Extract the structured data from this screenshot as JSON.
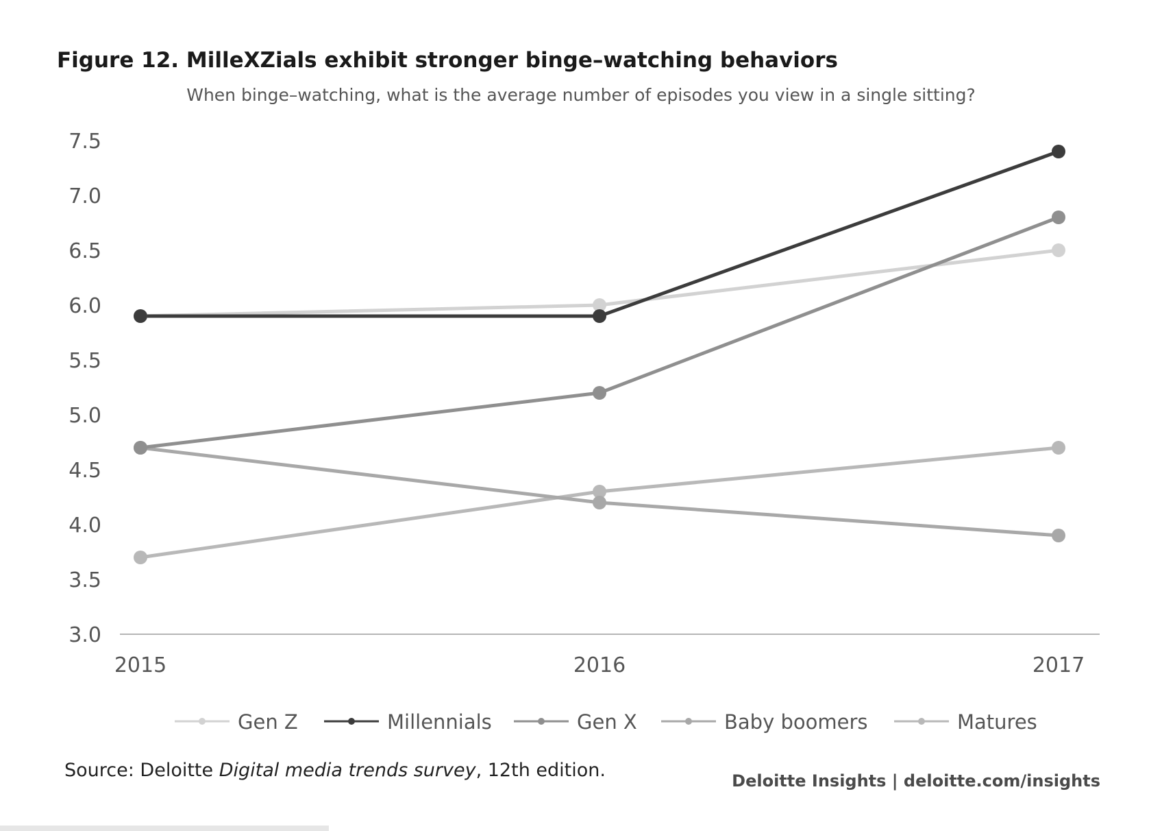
{
  "figure": {
    "title": "Figure 12. MilleXZials exhibit stronger binge–watching behaviors",
    "subtitle": "When binge–watching, what is the average number of episodes you view in a single sitting?"
  },
  "source": {
    "prefix": "Source: Deloitte ",
    "publication": "Digital media trends survey",
    "suffix": ", 12th edition."
  },
  "credit": "Deloitte Insights | deloitte.com/insights",
  "chart_data": {
    "type": "line",
    "title": "Figure 12. MilleXZials exhibit stronger binge–watching behaviors",
    "subtitle": "When binge–watching, what is the average number of episodes you view in a single sitting?",
    "xlabel": "",
    "ylabel": "",
    "x": [
      "2015",
      "2016",
      "2017"
    ],
    "ylim": [
      3.0,
      7.5
    ],
    "y_ticks": [
      "3.0",
      "3.5",
      "4.0",
      "4.5",
      "5.0",
      "5.5",
      "6.0",
      "6.5",
      "7.0",
      "7.5"
    ],
    "grid": false,
    "legend_position": "bottom",
    "series": [
      {
        "name": "Gen Z",
        "values": [
          5.9,
          6.0,
          6.5
        ],
        "color": "#d2d2d2"
      },
      {
        "name": "Millennials",
        "values": [
          5.9,
          5.9,
          7.4
        ],
        "color": "#3c3c3c"
      },
      {
        "name": "Gen X",
        "values": [
          4.7,
          5.2,
          6.8
        ],
        "color": "#8f8f8f"
      },
      {
        "name": "Baby boomers",
        "values": [
          4.7,
          4.2,
          3.9
        ],
        "color": "#a8a8a8"
      },
      {
        "name": "Matures",
        "values": [
          3.7,
          4.3,
          4.7
        ],
        "color": "#b8b8b8"
      }
    ]
  }
}
